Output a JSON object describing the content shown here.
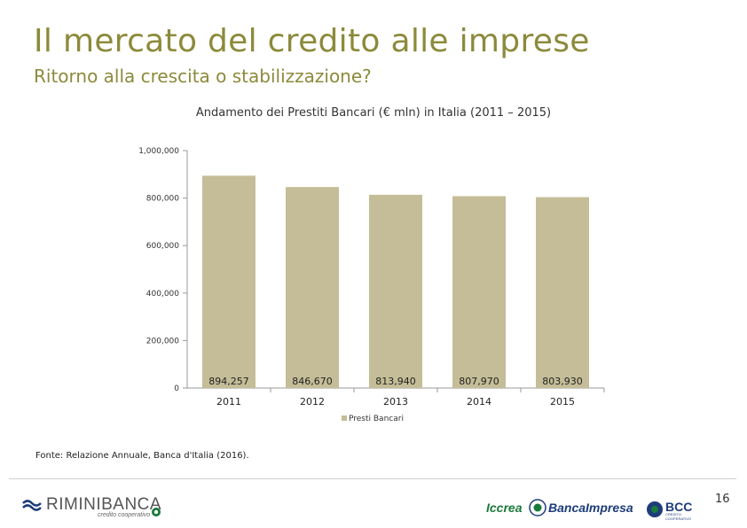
{
  "header": {
    "title": "Il mercato del credito alle imprese",
    "subtitle": "Ritorno alla crescita o stabilizzazione?"
  },
  "chart_data": {
    "type": "bar",
    "title": "Andamento dei Prestiti Bancari (€ mln) in Italia (2011 – 2015)",
    "categories": [
      "2011",
      "2012",
      "2013",
      "2014",
      "2015"
    ],
    "series": [
      {
        "name": "Presti Bancari",
        "values": [
          894257,
          846670,
          813940,
          807970,
          803930
        ],
        "color": "#c4bd97"
      }
    ],
    "data_labels": [
      "894,257",
      "846,670",
      "813,940",
      "807,970",
      "803,930"
    ],
    "ylim": [
      0,
      1000000
    ],
    "yticks": [
      0,
      200000,
      400000,
      600000,
      800000,
      1000000
    ],
    "ytick_labels": [
      "0",
      "200,000",
      "400,000",
      "600,000",
      "800,000",
      "1,000,000"
    ],
    "xlabel": "",
    "ylabel": "",
    "grid": false,
    "legend_position": "bottom"
  },
  "source": "Fonte: Relazione Annuale, Banca d'Italia (2016).",
  "footer": {
    "page_number": "16",
    "logo_left_text": "RIMINIBANCA",
    "logo_left_tagline": "credito cooperativo",
    "logo_iccrea_part1": "Iccrea",
    "logo_iccrea_part2": "BancaImpresa",
    "logo_bcc_text": "BCC",
    "logo_bcc_tagline": "CREDITO COOPERATIVO"
  },
  "colors": {
    "title": "#8c8a3b",
    "bar": "#c4bd97",
    "axis": "#999999",
    "iccrea_green": "#1a7a3a",
    "iccrea_blue": "#1d3c7a"
  }
}
